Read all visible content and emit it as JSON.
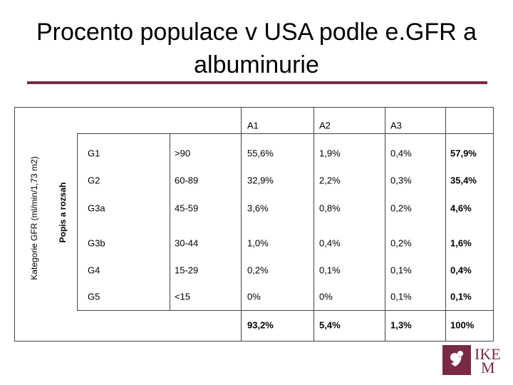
{
  "header": {
    "title": "Procento populace v USA podle e.GFR a albuminurie"
  },
  "table": {
    "side_label_outer": "Kategorie  GFR (ml/min/1,73 m2)",
    "side_label_inner": "Popis a rozsah",
    "columns": [
      "A1",
      "A2",
      "A3"
    ],
    "rows": [
      [
        "G1",
        ">90",
        "55,6%",
        "1,9%",
        "0,4%",
        "57,9%"
      ],
      [
        "G2",
        "60-89",
        "32,9%",
        "2,2%",
        "0,3%",
        "35,4%"
      ],
      [
        "G3a",
        "45-59",
        "3,6%",
        "0,8%",
        "0,2%",
        "4,6%"
      ],
      [
        "G3b",
        "30-44",
        "1,0%",
        "0,4%",
        "0,2%",
        "1,6%"
      ],
      [
        "G4",
        "15-29",
        "0,2%",
        "0,1%",
        "0,1%",
        "0,4%"
      ],
      [
        "G5",
        "<15",
        "0%",
        "0%",
        "0,1%",
        "0,1%"
      ]
    ],
    "totals": [
      "93,2%",
      "5,4%",
      "1,3%",
      "100%"
    ]
  },
  "logo": {
    "line1": "IKE",
    "line2": "M"
  }
}
